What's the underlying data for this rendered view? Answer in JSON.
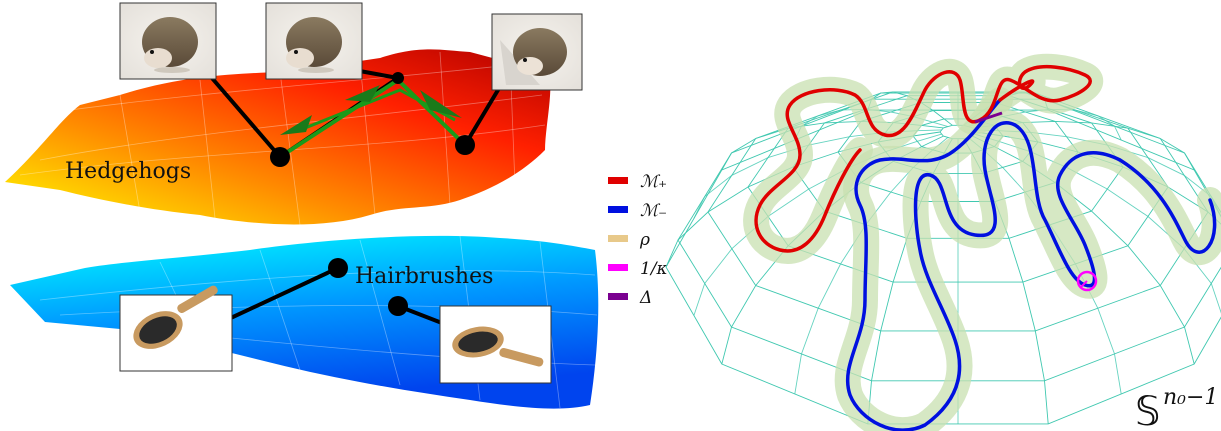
{
  "left_panel": {
    "top_manifold_label": "Hedgehogs",
    "bottom_manifold_label": "Hairbrushes",
    "top_gradient": [
      "#ffff00",
      "#ff8c00",
      "#ff2000",
      "#b00000"
    ],
    "bottom_gradient": [
      "#00ffff",
      "#0099ff",
      "#0044ee"
    ],
    "geodesic_color": "#1a9a1a",
    "connector_color": "#000000",
    "images": [
      {
        "name": "hedgehog-photo-1",
        "kind": "hedgehog"
      },
      {
        "name": "hedgehog-photo-2",
        "kind": "hedgehog"
      },
      {
        "name": "hedgehog-photo-3",
        "kind": "hedgehog"
      },
      {
        "name": "hairbrush-photo-1",
        "kind": "hairbrush"
      },
      {
        "name": "hairbrush-photo-2",
        "kind": "hairbrush"
      }
    ]
  },
  "legend": {
    "items": [
      {
        "label": "ℳ₊",
        "color": "#e00000"
      },
      {
        "label": "ℳ₋",
        "color": "#0010e0"
      },
      {
        "label": "ρ",
        "color": "#e8c98a"
      },
      {
        "label": "1/κ",
        "color": "#ff00ff"
      },
      {
        "label": "Δ",
        "color": "#7a0090"
      }
    ]
  },
  "right_panel": {
    "sphere_label": "𝕊",
    "sphere_exponent": "n₀−1",
    "mesh_color": "#40c8b0",
    "m_plus_color": "#e00000",
    "m_minus_color": "#0010e0",
    "tube_fill": "#c8e0b0",
    "tube_stroke": "#d8b870"
  }
}
